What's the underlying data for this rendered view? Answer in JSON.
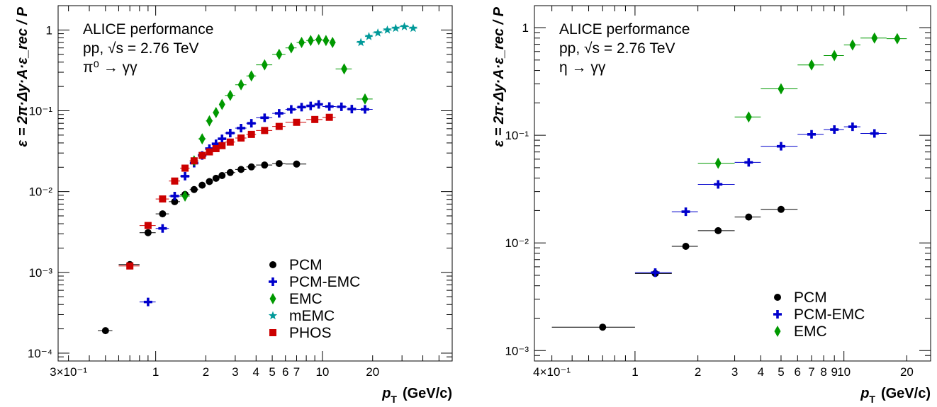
{
  "chart_data": [
    {
      "type": "scatter",
      "xscale": "log",
      "yscale": "log",
      "xlim": [
        0.26,
        60
      ],
      "ylim": [
        8e-05,
        2
      ],
      "xlabel_main": "p",
      "xlabel_sub": "T",
      "xlabel_unit": "(GeV/c)",
      "ylabel": "ε = 2π·Δy·A·ε_rec / P",
      "annotations": [
        "ALICE performance",
        "pp, √s = 2.76 TeV",
        "π⁰ → γγ"
      ],
      "xticks": [
        {
          "v": 0.3,
          "label": "3×10⁻¹"
        },
        {
          "v": 1,
          "label": "1"
        },
        {
          "v": 2,
          "label": "2"
        },
        {
          "v": 3,
          "label": "3"
        },
        {
          "v": 4,
          "label": "4"
        },
        {
          "v": 5,
          "label": "5"
        },
        {
          "v": 6,
          "label": "6"
        },
        {
          "v": 7,
          "label": "7"
        },
        {
          "v": 10,
          "label": "10"
        },
        {
          "v": 20,
          "label": "20"
        }
      ],
      "yticks": [
        {
          "v": 0.0001,
          "label": "10⁻⁴"
        },
        {
          "v": 0.001,
          "label": "10⁻³"
        },
        {
          "v": 0.01,
          "label": "10⁻²"
        },
        {
          "v": 0.1,
          "label": "10⁻¹"
        },
        {
          "v": 1,
          "label": "1"
        }
      ],
      "legend_position": "bottom-right",
      "series": [
        {
          "name": "PCM",
          "marker": "circle",
          "color": "#000000",
          "points": [
            [
              0.5,
              0.00019,
              0.45,
              0.55
            ],
            [
              0.7,
              0.00125,
              0.6,
              0.8
            ],
            [
              0.9,
              0.0031,
              0.8,
              1.0
            ],
            [
              1.1,
              0.0053,
              1.0,
              1.2
            ],
            [
              1.3,
              0.0075,
              1.2,
              1.4
            ],
            [
              1.5,
              0.0092,
              1.4,
              1.6
            ],
            [
              1.7,
              0.0106,
              1.6,
              1.8
            ],
            [
              1.9,
              0.012,
              1.8,
              2.0
            ],
            [
              2.1,
              0.0133,
              2.0,
              2.2
            ],
            [
              2.3,
              0.0146,
              2.2,
              2.4
            ],
            [
              2.5,
              0.0158,
              2.4,
              2.6
            ],
            [
              2.8,
              0.0172,
              2.6,
              3.0
            ],
            [
              3.25,
              0.0188,
              3.0,
              3.5
            ],
            [
              3.75,
              0.0202,
              3.5,
              4.0
            ],
            [
              4.5,
              0.0213,
              4.0,
              5.0
            ],
            [
              5.5,
              0.0222,
              5.0,
              6.0
            ],
            [
              7.0,
              0.0219,
              6.0,
              8.0
            ]
          ]
        },
        {
          "name": "PCM-EMC",
          "marker": "cross",
          "color": "#0000cc",
          "points": [
            [
              0.9,
              0.00043,
              0.8,
              1.0
            ],
            [
              1.1,
              0.0035,
              1.0,
              1.2
            ],
            [
              1.3,
              0.0088,
              1.2,
              1.4
            ],
            [
              1.5,
              0.0155,
              1.4,
              1.6
            ],
            [
              1.7,
              0.0225,
              1.6,
              1.8
            ],
            [
              1.9,
              0.028,
              1.8,
              2.0
            ],
            [
              2.1,
              0.034,
              2.0,
              2.2
            ],
            [
              2.3,
              0.039,
              2.2,
              2.4
            ],
            [
              2.5,
              0.045,
              2.4,
              2.6
            ],
            [
              2.8,
              0.053,
              2.6,
              3.0
            ],
            [
              3.25,
              0.061,
              3.0,
              3.5
            ],
            [
              3.75,
              0.07,
              3.5,
              4.0
            ],
            [
              4.5,
              0.082,
              4.0,
              5.0
            ],
            [
              5.5,
              0.093,
              5.0,
              6.0
            ],
            [
              6.5,
              0.104,
              6.0,
              7.0
            ],
            [
              7.5,
              0.111,
              7.0,
              8.0
            ],
            [
              8.5,
              0.115,
              8.0,
              9.0
            ],
            [
              9.5,
              0.12,
              9.0,
              10.0
            ],
            [
              11.0,
              0.113,
              10.0,
              12.0
            ],
            [
              13.0,
              0.112,
              12.0,
              14.0
            ],
            [
              15.0,
              0.105,
              14.0,
              16.0
            ],
            [
              18.0,
              0.104,
              16.0,
              20.0
            ]
          ]
        },
        {
          "name": "EMC",
          "marker": "diamond",
          "color": "#009900",
          "points": [
            [
              1.5,
              0.0088,
              1.4,
              1.6
            ],
            [
              1.7,
              0.024,
              1.6,
              1.8
            ],
            [
              1.9,
              0.045,
              1.8,
              2.0
            ],
            [
              2.1,
              0.075,
              2.0,
              2.2
            ],
            [
              2.3,
              0.095,
              2.2,
              2.4
            ],
            [
              2.5,
              0.12,
              2.4,
              2.6
            ],
            [
              2.8,
              0.155,
              2.6,
              3.0
            ],
            [
              3.25,
              0.21,
              3.0,
              3.5
            ],
            [
              3.75,
              0.27,
              3.5,
              4.0
            ],
            [
              4.5,
              0.37,
              4.0,
              5.0
            ],
            [
              5.5,
              0.5,
              5.0,
              6.0
            ],
            [
              6.5,
              0.6,
              6.0,
              7.0
            ],
            [
              7.5,
              0.7,
              7.0,
              8.0
            ],
            [
              8.5,
              0.74,
              8.0,
              9.0
            ],
            [
              9.5,
              0.76,
              9.0,
              10.0
            ],
            [
              10.5,
              0.74,
              10.0,
              11.0
            ],
            [
              11.5,
              0.7,
              11.0,
              12.0
            ],
            [
              13.5,
              0.33,
              12.0,
              15.0
            ],
            [
              18.0,
              0.14,
              16.0,
              20.0
            ]
          ]
        },
        {
          "name": "mEMC",
          "marker": "star",
          "color": "#009999",
          "points": [
            [
              17.0,
              0.7,
              16.0,
              18.0
            ],
            [
              19.0,
              0.83,
              18.0,
              20.0
            ],
            [
              21.5,
              0.92,
              20.0,
              23.0
            ],
            [
              24.5,
              1.0,
              23.0,
              26.0
            ],
            [
              27.5,
              1.05,
              26.0,
              29.0
            ],
            [
              31.0,
              1.1,
              29.0,
              33.0
            ],
            [
              35.0,
              1.05,
              33.0,
              37.0
            ]
          ]
        },
        {
          "name": "PHOS",
          "marker": "square",
          "color": "#cc0000",
          "points": [
            [
              0.7,
              0.0012,
              0.6,
              0.8
            ],
            [
              0.9,
              0.0038,
              0.8,
              1.0
            ],
            [
              1.1,
              0.0081,
              1.0,
              1.2
            ],
            [
              1.3,
              0.0135,
              1.2,
              1.4
            ],
            [
              1.5,
              0.0195,
              1.4,
              1.6
            ],
            [
              1.7,
              0.024,
              1.6,
              1.8
            ],
            [
              1.9,
              0.028,
              1.8,
              2.0
            ],
            [
              2.1,
              0.031,
              2.0,
              2.2
            ],
            [
              2.3,
              0.034,
              2.2,
              2.4
            ],
            [
              2.5,
              0.037,
              2.4,
              2.6
            ],
            [
              2.8,
              0.041,
              2.6,
              3.0
            ],
            [
              3.25,
              0.046,
              3.0,
              3.5
            ],
            [
              3.75,
              0.051,
              3.5,
              4.0
            ],
            [
              4.5,
              0.057,
              4.0,
              5.0
            ],
            [
              5.5,
              0.064,
              5.0,
              6.0
            ],
            [
              7.0,
              0.072,
              6.0,
              8.0
            ],
            [
              9.0,
              0.078,
              8.0,
              10.0
            ],
            [
              11.0,
              0.083,
              10.0,
              12.0
            ]
          ]
        }
      ]
    },
    {
      "type": "scatter",
      "xscale": "log",
      "yscale": "log",
      "xlim": [
        0.33,
        26
      ],
      "ylim": [
        0.0008,
        1.6
      ],
      "xlabel_main": "p",
      "xlabel_sub": "T",
      "xlabel_unit": "(GeV/c)",
      "ylabel": "ε = 2π·Δy·A·ε_rec / P",
      "annotations": [
        "ALICE performance",
        "pp, √s = 2.76 TeV",
        "η → γγ"
      ],
      "xticks": [
        {
          "v": 0.4,
          "label": "4×10⁻¹"
        },
        {
          "v": 1,
          "label": "1"
        },
        {
          "v": 2,
          "label": "2"
        },
        {
          "v": 3,
          "label": "3"
        },
        {
          "v": 4,
          "label": "4"
        },
        {
          "v": 5,
          "label": "5"
        },
        {
          "v": 6,
          "label": "6"
        },
        {
          "v": 7,
          "label": "7"
        },
        {
          "v": 8,
          "label": "8"
        },
        {
          "v": 9,
          "label": "9"
        },
        {
          "v": 10,
          "label": "10"
        },
        {
          "v": 20,
          "label": "20"
        }
      ],
      "yticks": [
        {
          "v": 0.001,
          "label": "10⁻³"
        },
        {
          "v": 0.01,
          "label": "10⁻²"
        },
        {
          "v": 0.1,
          "label": "10⁻¹"
        },
        {
          "v": 1,
          "label": "1"
        }
      ],
      "legend_position": "bottom-right",
      "series": [
        {
          "name": "PCM",
          "marker": "circle",
          "color": "#000000",
          "points": [
            [
              0.7,
              0.00165,
              0.4,
              1.0
            ],
            [
              1.25,
              0.0052,
              1.0,
              1.5
            ],
            [
              1.75,
              0.0093,
              1.5,
              2.0
            ],
            [
              2.5,
              0.013,
              2.0,
              3.0
            ],
            [
              3.5,
              0.0174,
              3.0,
              4.0
            ],
            [
              5.0,
              0.0205,
              4.0,
              6.0
            ]
          ]
        },
        {
          "name": "PCM-EMC",
          "marker": "cross",
          "color": "#0000cc",
          "points": [
            [
              1.25,
              0.0053,
              1.0,
              1.5
            ],
            [
              1.75,
              0.0195,
              1.5,
              2.0
            ],
            [
              2.5,
              0.035,
              2.0,
              3.0
            ],
            [
              3.5,
              0.056,
              3.0,
              4.0
            ],
            [
              5.0,
              0.079,
              4.0,
              6.0
            ],
            [
              7.0,
              0.102,
              6.0,
              8.0
            ],
            [
              9.0,
              0.113,
              8.0,
              10.0
            ],
            [
              11.0,
              0.12,
              10.0,
              12.0
            ],
            [
              14.0,
              0.104,
              12.0,
              16.0
            ]
          ]
        },
        {
          "name": "EMC",
          "marker": "diamond",
          "color": "#009900",
          "points": [
            [
              2.5,
              0.055,
              2.0,
              3.0
            ],
            [
              3.5,
              0.148,
              3.0,
              4.0
            ],
            [
              5.0,
              0.27,
              4.0,
              6.0
            ],
            [
              7.0,
              0.45,
              6.0,
              8.0
            ],
            [
              9.0,
              0.55,
              8.0,
              10.0
            ],
            [
              11.0,
              0.69,
              10.0,
              12.0
            ],
            [
              14.0,
              0.8,
              12.0,
              16.0
            ],
            [
              18.0,
              0.79,
              16.0,
              20.0
            ]
          ]
        }
      ]
    }
  ]
}
